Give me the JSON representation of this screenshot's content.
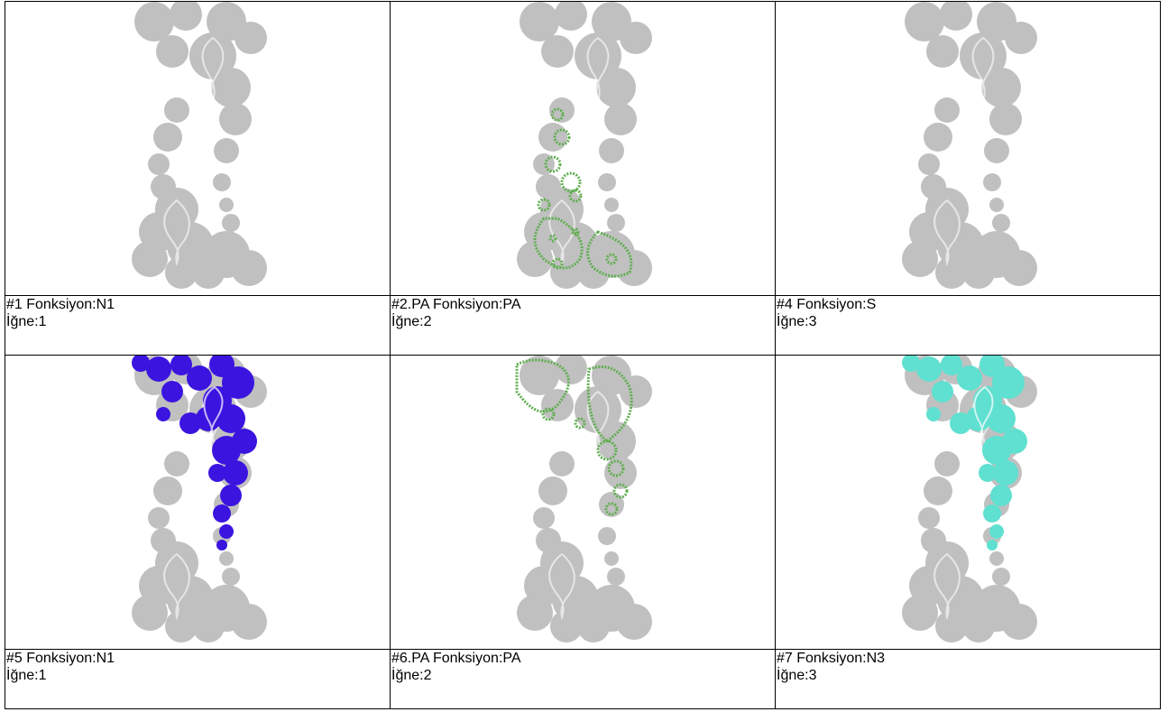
{
  "cells": [
    {
      "caption": "#1 Fonksiyon:N1",
      "needle": "İğne:1",
      "highlight": "none",
      "color": ""
    },
    {
      "caption": "#2.PA Fonksiyon:PA",
      "needle": "İğne:2",
      "highlight": "lower-left-outline",
      "color": "#5fae4f"
    },
    {
      "caption": "#4 Fonksiyon:S",
      "needle": "İğne:3",
      "highlight": "none",
      "color": ""
    },
    {
      "caption": "#5 Fonksiyon:N1",
      "needle": "İğne:1",
      "highlight": "upper-right-fill",
      "color": "#3b14e0"
    },
    {
      "caption": "#6.PA Fonksiyon:PA",
      "needle": "İğne:2",
      "highlight": "upper-right-outline",
      "color": "#5fae4f"
    },
    {
      "caption": "#7 Fonksiyon:N3",
      "needle": "İğne:3",
      "highlight": "upper-right-fill",
      "color": "#5fe0d0"
    }
  ],
  "base_color": "#bdbdbd"
}
